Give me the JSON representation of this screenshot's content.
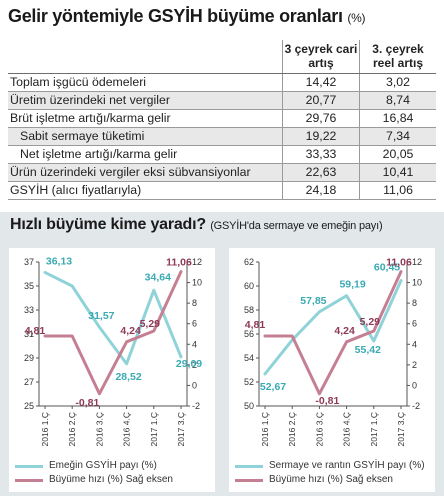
{
  "title": {
    "main": "Gelir yöntemiyle GSYİH büyüme oranları",
    "unit": "(%)"
  },
  "table": {
    "headers": [
      "3 çeyrek cari artış",
      "3. çeyrek reel artış"
    ],
    "rows": [
      {
        "label": "Toplam işgücü ödemeleri",
        "cari": "14,42",
        "reel": "3,02",
        "indent": false
      },
      {
        "label": "Üretim üzerindeki net vergiler",
        "cari": "20,77",
        "reel": "8,74",
        "indent": false
      },
      {
        "label": "Brüt işletme artığı/karma gelir",
        "cari": "29,76",
        "reel": "16,84",
        "indent": false
      },
      {
        "label": "Sabit sermaye tüketimi",
        "cari": "19,22",
        "reel": "7,34",
        "indent": true
      },
      {
        "label": "Net işletme artığı/karma gelir",
        "cari": "33,33",
        "reel": "20,05",
        "indent": true
      },
      {
        "label": "Ürün üzerindeki vergiler eksi sübvansiyonlar",
        "cari": "22,63",
        "reel": "10,41",
        "indent": false
      },
      {
        "label": "GSYİH (alıcı fiyatlarıyla)",
        "cari": "24,18",
        "reel": "11,06",
        "indent": false
      }
    ]
  },
  "subtitle": {
    "main": "Hızlı büyüme kime yaradı?",
    "sub": "(GSYİH'da sermaye ve emeğin payı)"
  },
  "colors": {
    "share": "#8fd3d8",
    "growth": "#c47f92",
    "axis": "#555555"
  },
  "chart_data": [
    {
      "type": "line",
      "categories": [
        "2016 1.Ç",
        "2016 2.Ç",
        "2016 3.Ç",
        "2016 4.Ç",
        "2017 1.Ç",
        "2017 3.Ç"
      ],
      "yleft": {
        "ticks": [
          25,
          27,
          29,
          31,
          33,
          35,
          37
        ],
        "ylim": [
          25,
          37
        ]
      },
      "yright": {
        "ticks": [
          -2,
          0,
          2,
          4,
          6,
          8,
          10,
          12
        ],
        "ylim": [
          -2,
          12
        ]
      },
      "series": [
        {
          "name": "Emeğin GSYİH payı (%)",
          "axis": "left",
          "values": [
            36.13,
            35.0,
            31.57,
            28.52,
            34.64,
            29.09
          ],
          "labels": [
            "36,13",
            "",
            "31,57",
            "28,52",
            "34,64",
            "29,09"
          ]
        },
        {
          "name": "Büyüme hızı (%) Sağ eksen",
          "axis": "right",
          "values": [
            4.81,
            4.81,
            -0.81,
            4.24,
            5.29,
            11.06
          ],
          "labels": [
            "4,81",
            "",
            "-0,81",
            "4,24",
            "5,29",
            "11,06"
          ]
        }
      ]
    },
    {
      "type": "line",
      "categories": [
        "2016 1.Ç",
        "2016 2.Ç",
        "2016 3.Ç",
        "2016 4.Ç",
        "2017 1.Ç",
        "2017 3.Ç"
      ],
      "yleft": {
        "ticks": [
          50,
          52,
          54,
          56,
          58,
          60,
          62
        ],
        "ylim": [
          50,
          62
        ]
      },
      "yright": {
        "ticks": [
          -2,
          0,
          2,
          4,
          6,
          8,
          10,
          12
        ],
        "ylim": [
          -2,
          12
        ]
      },
      "series": [
        {
          "name": "Sermaye ve rantın GSYİH payı (%)",
          "axis": "left",
          "values": [
            52.67,
            55.5,
            57.85,
            59.19,
            55.42,
            60.45
          ],
          "labels": [
            "52,67",
            "",
            "57,85",
            "59,19",
            "55,42",
            "60,45"
          ]
        },
        {
          "name": "Büyüme hızı (%) Sağ eksen",
          "axis": "right",
          "values": [
            4.81,
            4.81,
            -0.81,
            4.24,
            5.29,
            11.06
          ],
          "labels": [
            "4,81",
            "",
            "-0,81",
            "4,24",
            "5,29",
            "11,06"
          ]
        }
      ]
    }
  ]
}
